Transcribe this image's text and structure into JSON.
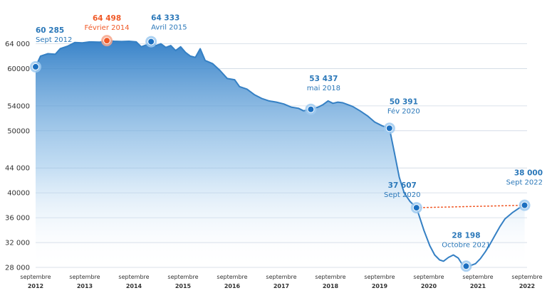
{
  "chart_data": {
    "type": "area",
    "title": "",
    "xlabel": "",
    "ylabel": "",
    "ylim": [
      28000,
      66000
    ],
    "xlim": [
      2012.7,
      2022.7
    ],
    "grid": "horizontal",
    "colors": {
      "line": "#3580c4",
      "fill_top": "#2f7dc6",
      "fill_bottom": "#ffffff",
      "marker": "#1b6fc0",
      "highlight": "#f05a28",
      "grid": "#cfd8e3",
      "label_blue": "#2b78b9",
      "label_orange": "#f05a28",
      "dotted_trend": "#f05a28"
    },
    "y_ticks": [
      {
        "value": 28000,
        "label": "28 000"
      },
      {
        "value": 32000,
        "label": "32 000"
      },
      {
        "value": 36000,
        "label": "36 000"
      },
      {
        "value": 40000,
        "label": "40000"
      },
      {
        "value": 44000,
        "label": "44 000"
      },
      {
        "value": 50000,
        "label": "50000"
      },
      {
        "value": 54000,
        "label": "54000"
      },
      {
        "value": 60000,
        "label": "60000"
      },
      {
        "value": 64000,
        "label": "64 000"
      }
    ],
    "x_ticks": [
      {
        "x": 2012.7,
        "line1": "septembre",
        "line2": "2012"
      },
      {
        "x": 2013.7,
        "line1": "septembre",
        "line2": "2013"
      },
      {
        "x": 2014.7,
        "line1": "septembre",
        "line2": "2014"
      },
      {
        "x": 2015.7,
        "line1": "septembre",
        "line2": "2015"
      },
      {
        "x": 2016.7,
        "line1": "septembre",
        "line2": "2016"
      },
      {
        "x": 2017.7,
        "line1": "septembre",
        "line2": "2017"
      },
      {
        "x": 2018.7,
        "line1": "septembre",
        "line2": "2018"
      },
      {
        "x": 2019.7,
        "line1": "septembre",
        "line2": "2019"
      },
      {
        "x": 2020.7,
        "line1": "septembre",
        "line2": "2020"
      },
      {
        "x": 2021.7,
        "line1": "septembre",
        "line2": "2021"
      },
      {
        "x": 2022.7,
        "line1": "septembre",
        "line2": "2022"
      }
    ],
    "series": [
      {
        "points": [
          [
            2012.7,
            60285
          ],
          [
            2012.8,
            62000
          ],
          [
            2012.95,
            62400
          ],
          [
            2013.1,
            62300
          ],
          [
            2013.2,
            63200
          ],
          [
            2013.35,
            63600
          ],
          [
            2013.5,
            64200
          ],
          [
            2013.65,
            64150
          ],
          [
            2013.8,
            64300
          ],
          [
            2014.0,
            64250
          ],
          [
            2014.15,
            64498
          ],
          [
            2014.3,
            64400
          ],
          [
            2014.45,
            64350
          ],
          [
            2014.6,
            64400
          ],
          [
            2014.75,
            64300
          ],
          [
            2014.85,
            63500
          ],
          [
            2014.95,
            63800
          ],
          [
            2015.05,
            64333
          ],
          [
            2015.15,
            63700
          ],
          [
            2015.25,
            64000
          ],
          [
            2015.35,
            63400
          ],
          [
            2015.45,
            63700
          ],
          [
            2015.55,
            62900
          ],
          [
            2015.65,
            63500
          ],
          [
            2015.75,
            62600
          ],
          [
            2015.85,
            62000
          ],
          [
            2015.95,
            61800
          ],
          [
            2016.05,
            63200
          ],
          [
            2016.15,
            61300
          ],
          [
            2016.3,
            60800
          ],
          [
            2016.45,
            59700
          ],
          [
            2016.6,
            58400
          ],
          [
            2016.75,
            58200
          ],
          [
            2016.85,
            57100
          ],
          [
            2017.0,
            56700
          ],
          [
            2017.15,
            55800
          ],
          [
            2017.3,
            55200
          ],
          [
            2017.45,
            54800
          ],
          [
            2017.6,
            54600
          ],
          [
            2017.75,
            54300
          ],
          [
            2017.9,
            53800
          ],
          [
            2018.05,
            53600
          ],
          [
            2018.15,
            53200
          ],
          [
            2018.3,
            53437
          ],
          [
            2018.45,
            53800
          ],
          [
            2018.55,
            54200
          ],
          [
            2018.65,
            54800
          ],
          [
            2018.75,
            54400
          ],
          [
            2018.85,
            54600
          ],
          [
            2018.95,
            54500
          ],
          [
            2019.05,
            54200
          ],
          [
            2019.15,
            53900
          ],
          [
            2019.3,
            53200
          ],
          [
            2019.45,
            52400
          ],
          [
            2019.6,
            51400
          ],
          [
            2019.75,
            50800
          ],
          [
            2019.9,
            50391
          ],
          [
            2020.0,
            46500
          ],
          [
            2020.1,
            42500
          ],
          [
            2020.2,
            40000
          ],
          [
            2020.32,
            38600
          ],
          [
            2020.45,
            37607
          ],
          [
            2020.6,
            34000
          ],
          [
            2020.72,
            31500
          ],
          [
            2020.82,
            30000
          ],
          [
            2020.92,
            29200
          ],
          [
            2021.0,
            29000
          ],
          [
            2021.1,
            29600
          ],
          [
            2021.2,
            30000
          ],
          [
            2021.3,
            29500
          ],
          [
            2021.38,
            28500
          ],
          [
            2021.46,
            28198
          ],
          [
            2021.55,
            28300
          ],
          [
            2021.65,
            28600
          ],
          [
            2021.75,
            29400
          ],
          [
            2021.85,
            30500
          ],
          [
            2021.95,
            31800
          ],
          [
            2022.05,
            33200
          ],
          [
            2022.15,
            34600
          ],
          [
            2022.25,
            35800
          ],
          [
            2022.4,
            36800
          ],
          [
            2022.55,
            37600
          ],
          [
            2022.65,
            38000
          ]
        ]
      }
    ],
    "annotations": [
      {
        "x": 2012.7,
        "y": 60285,
        "value": "60 285",
        "label": "Sept 2012",
        "color": "blue",
        "dx": 0,
        "dy": -48,
        "anchor": "start",
        "marker": true
      },
      {
        "x": 2014.15,
        "y": 64498,
        "value": "64 498",
        "label": "Février 2014",
        "color": "orange",
        "dx": 0,
        "dy": -28,
        "anchor": "middle",
        "marker": true
      },
      {
        "x": 2015.05,
        "y": 64333,
        "value": "64 333",
        "label": "Avril 2015",
        "color": "blue",
        "dx": 0,
        "dy": -30,
        "anchor": "start",
        "marker": true
      },
      {
        "x": 2018.3,
        "y": 53437,
        "value": "53 437",
        "label": "mai 2018",
        "color": "blue",
        "dx": 18,
        "dy": -40,
        "anchor": "middle",
        "marker": true
      },
      {
        "x": 2019.9,
        "y": 50391,
        "value": "50 391",
        "label": "Fév 2020",
        "color": "blue",
        "dx": 20,
        "dy": -34,
        "anchor": "middle",
        "marker": true
      },
      {
        "x": 2020.45,
        "y": 37607,
        "value": "37 607",
        "label": "Sept 2020",
        "color": "blue",
        "dx": -20,
        "dy": -28,
        "anchor": "middle",
        "marker": true
      },
      {
        "x": 2021.46,
        "y": 28198,
        "value": "28 198",
        "label": "Octobre 2021",
        "color": "blue",
        "dx": 0,
        "dy": -40,
        "anchor": "middle",
        "marker": true
      },
      {
        "x": 2022.65,
        "y": 38000,
        "value": "38 000",
        "label": "Sept 2022",
        "color": "blue",
        "dx": 0,
        "dy": -42,
        "anchor": "middle",
        "marker": true
      }
    ],
    "trend_line": {
      "from": [
        2020.45,
        37607
      ],
      "to": [
        2022.65,
        38000
      ],
      "style": "dotted"
    }
  }
}
